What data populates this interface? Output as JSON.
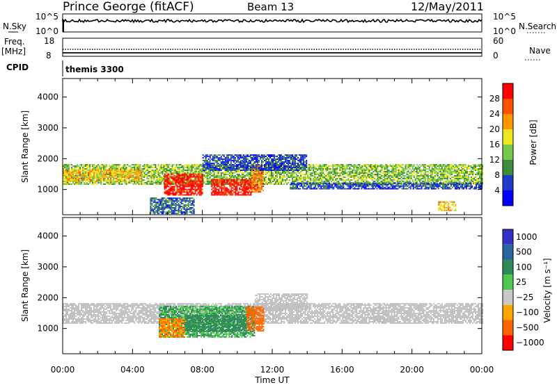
{
  "header": {
    "station": "Prince George (fitACF)",
    "beam": "Beam 13",
    "date": "12/May/2011"
  },
  "status_panels": {
    "nsky_label": "N.Sky",
    "nsky_ticks": [
      "10^5",
      "10^0"
    ],
    "nsearch_label": "N.Search",
    "nsearch_ticks": [
      "10^5",
      "10^0"
    ],
    "freq_label": "Freq.",
    "freq_unit": "[MHz]",
    "freq_ticks": [
      "18",
      "8"
    ],
    "nave_label": "Nave",
    "nave_ticks": [
      "60",
      "0"
    ],
    "cpid_label": "CPID",
    "cpid_value": "themis 3300"
  },
  "colors": {
    "power_scale": [
      "#0000ff",
      "#1e3cc8",
      "#3c8c3c",
      "#78c850",
      "#f0e61e",
      "#ff9600",
      "#ff5000",
      "#ff0000"
    ],
    "velocity_scale": [
      "#3232c8",
      "#2864a0",
      "#2e8b57",
      "#50c850",
      "#c8c8c8",
      "#ffa500",
      "#ff6400",
      "#ff0000"
    ],
    "ground_scatter": "#c0c0c0"
  },
  "chart_data": [
    {
      "type": "heatmap",
      "title": "",
      "xlabel": "Time UT",
      "ylabel": "Slant Range [km]",
      "colorbar_label": "Power [dB]",
      "colorbar_ticks": [
        "4",
        "8",
        "12",
        "16",
        "20",
        "24",
        "28"
      ],
      "colorbar_range": [
        0,
        32
      ],
      "x_ticks": [
        "00:00",
        "04:00",
        "08:00",
        "12:00",
        "16:00",
        "20:00",
        "00:00"
      ],
      "x_range_hours": [
        0,
        24
      ],
      "y_ticks": [
        "1000",
        "2000",
        "3000",
        "4000"
      ],
      "y_range_km": [
        180,
        4600
      ],
      "regions": [
        {
          "t0": 0.0,
          "t1": 24.0,
          "r0": 1150,
          "r1": 1800,
          "value": 14
        },
        {
          "t0": 0.0,
          "t1": 4.5,
          "r0": 1250,
          "r1": 1650,
          "value": 20
        },
        {
          "t0": 5.8,
          "t1": 8.0,
          "r0": 800,
          "r1": 1500,
          "value": 30
        },
        {
          "t0": 8.5,
          "t1": 10.8,
          "r0": 800,
          "r1": 1300,
          "value": 30
        },
        {
          "t0": 10.8,
          "t1": 11.5,
          "r0": 900,
          "r1": 1800,
          "value": 24
        },
        {
          "t0": 5.0,
          "t1": 7.5,
          "r0": 200,
          "r1": 700,
          "value": 8
        },
        {
          "t0": 8.0,
          "t1": 14.0,
          "r0": 1600,
          "r1": 2100,
          "value": 6
        },
        {
          "t0": 13.0,
          "t1": 24.0,
          "r0": 1000,
          "r1": 1200,
          "value": 6
        },
        {
          "t0": 21.5,
          "t1": 22.5,
          "r0": 300,
          "r1": 600,
          "value": 20
        }
      ]
    },
    {
      "type": "heatmap",
      "title": "",
      "xlabel": "Time UT",
      "ylabel": "Slant Range [km]",
      "colorbar_label": "Velocity [m s⁻¹]",
      "colorbar_ticks": [
        "1000",
        "500",
        "100",
        "25",
        "−25",
        "−100",
        "−500",
        "−1000"
      ],
      "x_ticks": [
        "00:00",
        "04:00",
        "08:00",
        "12:00",
        "16:00",
        "20:00",
        "00:00"
      ],
      "x_range_hours": [
        0,
        24
      ],
      "y_ticks": [
        "1000",
        "2000",
        "3000",
        "4000"
      ],
      "y_range_km": [
        180,
        4600
      ],
      "regions": [
        {
          "t0": 0.0,
          "t1": 24.0,
          "r0": 1150,
          "r1": 1800,
          "value": "ground"
        },
        {
          "t0": 11.0,
          "t1": 14.0,
          "r0": 1600,
          "r1": 2100,
          "value": "ground"
        },
        {
          "t0": 5.5,
          "t1": 11.0,
          "r0": 700,
          "r1": 1700,
          "value": 100
        },
        {
          "t0": 5.5,
          "t1": 7.0,
          "r0": 700,
          "r1": 1300,
          "value": -100
        },
        {
          "t0": 10.5,
          "t1": 11.5,
          "r0": 900,
          "r1": 1700,
          "value": -200
        },
        {
          "t0": 7.0,
          "t1": 10.5,
          "r0": 900,
          "r1": 1400,
          "value": 300
        }
      ]
    }
  ]
}
